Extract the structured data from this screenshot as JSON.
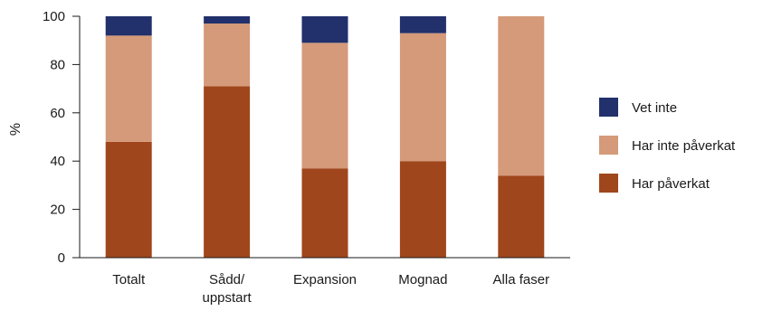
{
  "chart_data": {
    "type": "bar",
    "stacked": true,
    "ylabel": "%",
    "ylim": [
      0,
      100
    ],
    "yticks": [
      0,
      20,
      40,
      60,
      80,
      100
    ],
    "grid": false,
    "legend_position": "right",
    "categories": [
      "Totalt",
      "Sådd/\nuppstart",
      "Expansion",
      "Mognad",
      "Alla faser"
    ],
    "series": [
      {
        "name": "Har påverkat",
        "color": "#a0461c",
        "values": [
          48,
          71,
          37,
          40,
          34
        ]
      },
      {
        "name": "Har inte påverkat",
        "color": "#d49a79",
        "values": [
          44,
          26,
          52,
          53,
          66
        ]
      },
      {
        "name": "Vet inte",
        "color": "#22306b",
        "values": [
          8,
          3,
          11,
          7,
          0
        ]
      }
    ],
    "legend_order": [
      "Vet inte",
      "Har inte påverkat",
      "Har påverkat"
    ]
  }
}
